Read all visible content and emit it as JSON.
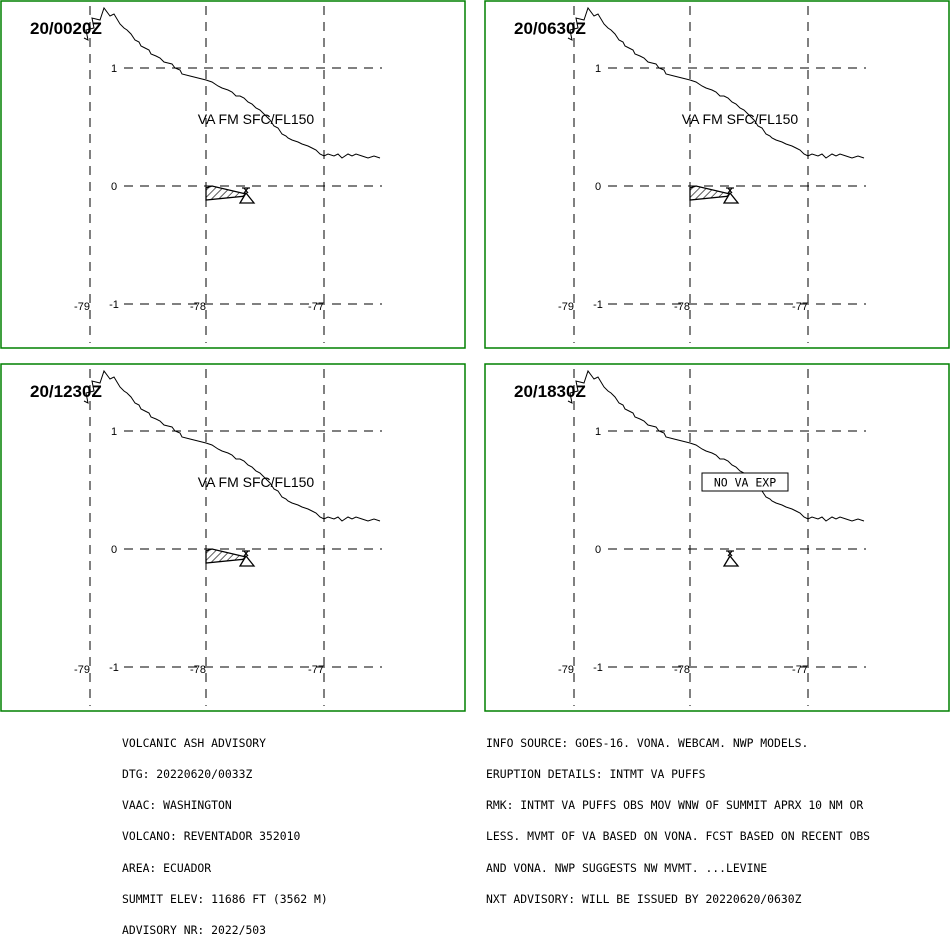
{
  "panels": [
    {
      "time": "20/0020Z",
      "label": "VA FM SFC/FL150",
      "ash": true,
      "no_va": false
    },
    {
      "time": "20/0630Z",
      "label": "VA FM SFC/FL150",
      "ash": true,
      "no_va": false
    },
    {
      "time": "20/1230Z",
      "label": "VA FM SFC/FL150",
      "ash": true,
      "no_va": false
    },
    {
      "time": "20/1830Z",
      "label": "NO VA EXP",
      "ash": false,
      "no_va": true
    }
  ],
  "axes": {
    "lon_labels": [
      "-79",
      "-78",
      "-77"
    ],
    "lat_labels": [
      "1",
      "0",
      "-1"
    ]
  },
  "colors": {
    "frame": "#008000",
    "line": "#000000"
  },
  "advisory_left": [
    "VOLCANIC ASH ADVISORY",
    "DTG: 20220620/0033Z",
    "VAAC: WASHINGTON",
    "VOLCANO: REVENTADOR 352010",
    "AREA: ECUADOR",
    "SUMMIT ELEV: 11686 FT (3562 M)",
    "ADVISORY NR: 2022/503"
  ],
  "advisory_right": [
    "INFO SOURCE: GOES-16. VONA. WEBCAM. NWP MODELS.",
    "ERUPTION DETAILS: INTMT VA PUFFS",
    "RMK: INTMT VA PUFFS OBS MOV WNW OF SUMMIT APRX 10 NM OR",
    "LESS. MVMT OF VA BASED ON VONA. FCST BASED ON RECENT OBS",
    "AND VONA. NWP SUGGESTS NW MVMT. ...LEVINE",
    "NXT ADVISORY: WILL BE ISSUED BY 20220620/0630Z"
  ]
}
